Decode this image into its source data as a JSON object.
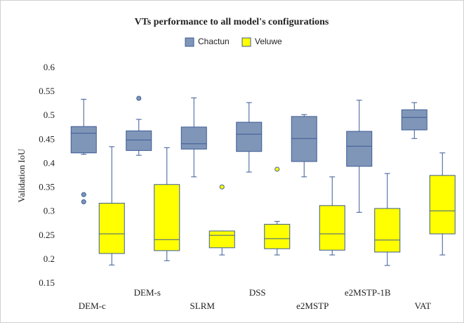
{
  "chart_data": {
    "type": "box",
    "title": "VTs performance to all model's configurations",
    "y_label": "Validation IoU",
    "categories": [
      "DEM-c",
      "DEM-s",
      "SLRM",
      "DSS",
      "e2MSTP",
      "e2MSTP-1B",
      "VAT"
    ],
    "ylim": [
      0.15,
      0.6
    ],
    "yticks": [
      0.15,
      0.2,
      0.25,
      0.3,
      0.35,
      0.4,
      0.45,
      0.5,
      0.55,
      0.6
    ],
    "grid": false,
    "legend": "top",
    "series": [
      {
        "name": "Chactun",
        "color": "#8096b8",
        "line_color": "#3b5b95",
        "min": [
          0.42,
          0.418,
          0.373,
          0.383,
          0.373,
          0.299,
          0.453
        ],
        "q1": [
          0.423,
          0.428,
          0.431,
          0.426,
          0.405,
          0.395,
          0.471
        ],
        "median": [
          0.464,
          0.45,
          0.442,
          0.462,
          0.453,
          0.437,
          0.497
        ],
        "q3": [
          0.478,
          0.469,
          0.477,
          0.487,
          0.499,
          0.468,
          0.513
        ],
        "max": [
          0.535,
          0.493,
          0.538,
          0.528,
          0.503,
          0.533,
          0.528
        ],
        "outliers": [
          [
            0.336,
            0.321
          ],
          [
            0.537
          ],
          [],
          [],
          [],
          [],
          []
        ]
      },
      {
        "name": "Veluwe",
        "color": "#ffff00",
        "line_color": "#3b5b95",
        "min": [
          0.189,
          0.198,
          0.21,
          0.21,
          0.21,
          0.188,
          0.21
        ],
        "q1": [
          0.213,
          0.219,
          0.225,
          0.223,
          0.22,
          0.216,
          0.254
        ],
        "median": [
          0.254,
          0.242,
          0.251,
          0.244,
          0.254,
          0.241,
          0.302
        ],
        "q3": [
          0.318,
          0.357,
          0.26,
          0.274,
          0.313,
          0.307,
          0.376
        ],
        "max": [
          0.436,
          0.434,
          0.26,
          0.28,
          0.373,
          0.38,
          0.423
        ],
        "outliers": [
          [],
          [],
          [
            0.352
          ],
          [
            0.389
          ],
          [],
          [],
          []
        ]
      }
    ]
  }
}
